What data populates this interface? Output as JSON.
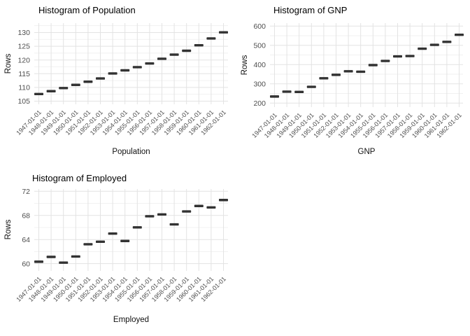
{
  "page": {
    "background": "#ffffff"
  },
  "colors": {
    "mark": "#323232",
    "grid_major": "#e3e3e3",
    "grid_minor": "#f1f1f1",
    "tick_label": "#4d4d4d",
    "axis_title": "#111111",
    "title": "#000000"
  },
  "chart_data": [
    {
      "type": "scatter",
      "mark": "horizontal-dash",
      "title": "Histogram of Population",
      "xlabel": "Population",
      "ylabel": "Rows",
      "legend": "none",
      "grid": "on",
      "categories": [
        "1947-01-01",
        "1948-01-01",
        "1949-01-01",
        "1950-01-01",
        "1951-01-01",
        "1952-01-01",
        "1953-01-01",
        "1954-01-01",
        "1955-01-01",
        "1956-01-01",
        "1957-01-01",
        "1958-01-01",
        "1959-01-01",
        "1960-01-01",
        "1961-01-01",
        "1962-01-01"
      ],
      "values": [
        107.608,
        108.632,
        109.773,
        110.929,
        112.075,
        113.27,
        115.094,
        116.219,
        117.388,
        118.734,
        120.445,
        121.95,
        123.366,
        125.368,
        127.852,
        130.081
      ],
      "yticks": [
        105,
        110,
        115,
        120,
        125,
        130
      ],
      "ylim": [
        103.85,
        133.44
      ]
    },
    {
      "type": "scatter",
      "mark": "horizontal-dash",
      "title": "Histogram of GNP",
      "xlabel": "GNP",
      "ylabel": "Rows",
      "legend": "none",
      "grid": "on",
      "categories": [
        "1947-01-01",
        "1948-01-01",
        "1949-01-01",
        "1950-01-01",
        "1951-01-01",
        "1952-01-01",
        "1953-01-01",
        "1954-01-01",
        "1955-01-01",
        "1956-01-01",
        "1957-01-01",
        "1958-01-01",
        "1959-01-01",
        "1960-01-01",
        "1961-01-01",
        "1962-01-01"
      ],
      "values": [
        234.289,
        259.426,
        258.054,
        284.599,
        328.975,
        346.999,
        365.385,
        363.112,
        397.469,
        419.18,
        442.769,
        444.546,
        482.704,
        502.601,
        518.173,
        554.894
      ],
      "yticks": [
        200,
        300,
        400,
        500,
        600
      ],
      "ylim": [
        179.3,
        615.6
      ]
    },
    {
      "type": "scatter",
      "mark": "horizontal-dash",
      "title": "Histogram of Employed",
      "xlabel": "Employed",
      "ylabel": "Rows",
      "legend": "none",
      "grid": "on",
      "categories": [
        "1947-01-01",
        "1948-01-01",
        "1949-01-01",
        "1950-01-01",
        "1951-01-01",
        "1952-01-01",
        "1953-01-01",
        "1954-01-01",
        "1955-01-01",
        "1956-01-01",
        "1957-01-01",
        "1958-01-01",
        "1959-01-01",
        "1960-01-01",
        "1961-01-01",
        "1962-01-01"
      ],
      "values": [
        60.323,
        61.122,
        60.171,
        61.187,
        63.221,
        63.639,
        64.989,
        63.761,
        66.019,
        67.857,
        68.169,
        66.513,
        68.655,
        69.564,
        69.331,
        70.551
      ],
      "yticks": [
        60,
        64,
        68,
        72
      ],
      "ylim": [
        58.8,
        72.38
      ]
    }
  ]
}
